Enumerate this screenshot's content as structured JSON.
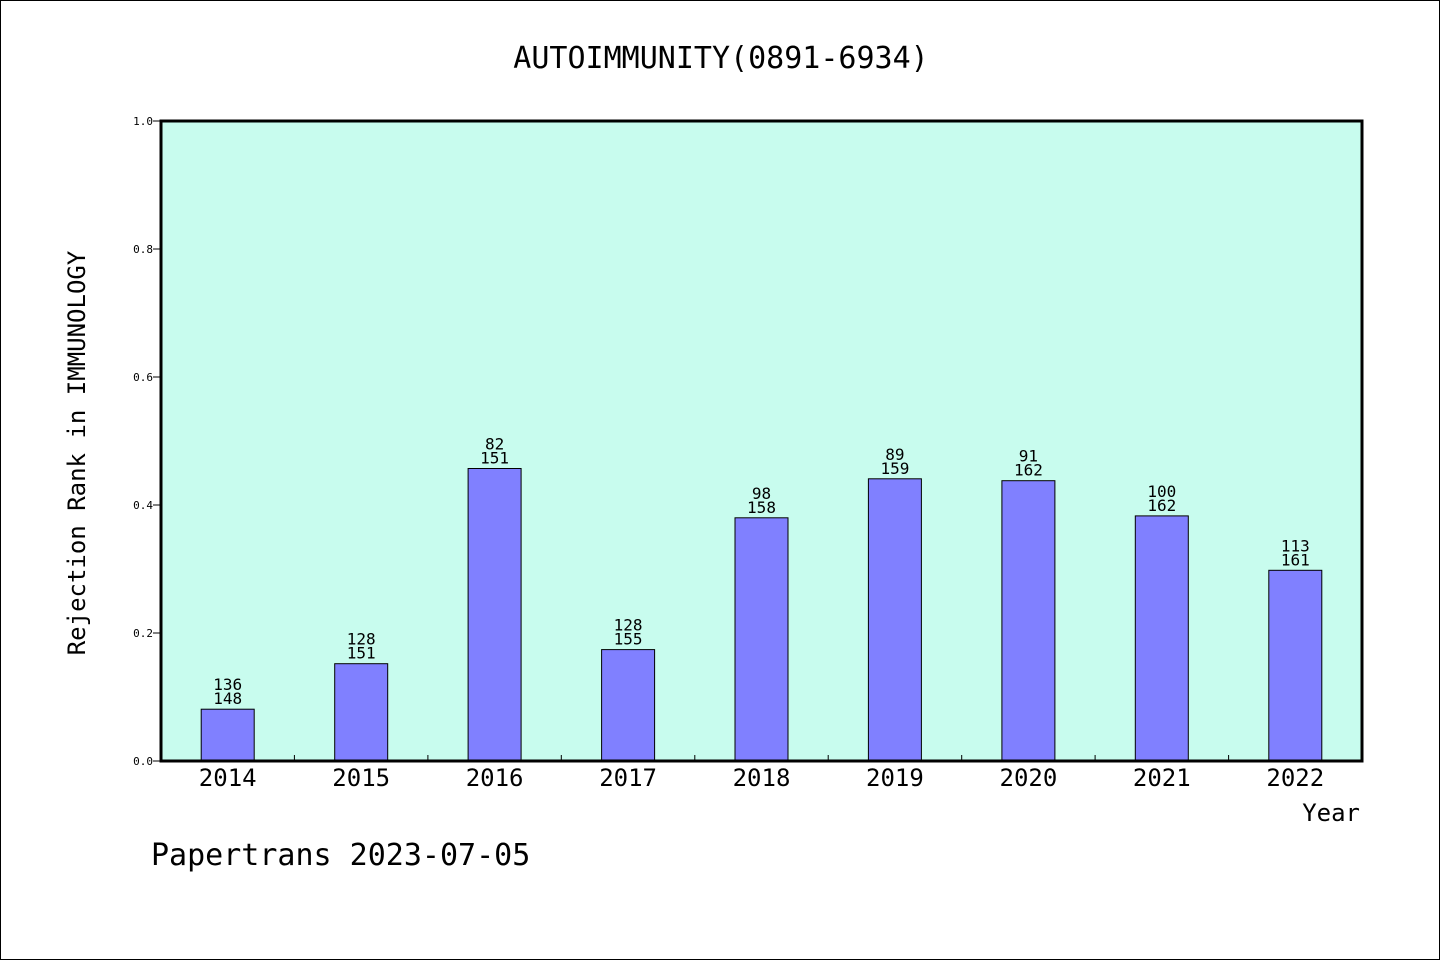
{
  "chart_data": {
    "type": "bar",
    "title": "AUTOIMMUNITY(0891-6934)",
    "xlabel": "Year",
    "ylabel": "Rejection Rank in IMMUNOLOGY",
    "ylim": [
      0,
      1.0
    ],
    "yticks": [
      "0.0",
      "0.2",
      "0.4",
      "0.6",
      "0.8",
      "1.0"
    ],
    "grid": false,
    "colors": {
      "plot_background": "#c8fcee",
      "bar_fill": "#8080ff",
      "bar_stroke": "#000000"
    },
    "categories": [
      "2014",
      "2015",
      "2016",
      "2017",
      "2018",
      "2019",
      "2020",
      "2021",
      "2022"
    ],
    "values": [
      0.081,
      0.152,
      0.457,
      0.174,
      0.38,
      0.441,
      0.438,
      0.383,
      0.298
    ],
    "annotations": [
      {
        "rank": "136",
        "total": "148"
      },
      {
        "rank": "128",
        "total": "151"
      },
      {
        "rank": "82",
        "total": "151"
      },
      {
        "rank": "128",
        "total": "155"
      },
      {
        "rank": "98",
        "total": "158"
      },
      {
        "rank": "89",
        "total": "159"
      },
      {
        "rank": "91",
        "total": "162"
      },
      {
        "rank": "100",
        "total": "162"
      },
      {
        "rank": "113",
        "total": "161"
      }
    ]
  },
  "footer": "Papertrans 2023-07-05"
}
